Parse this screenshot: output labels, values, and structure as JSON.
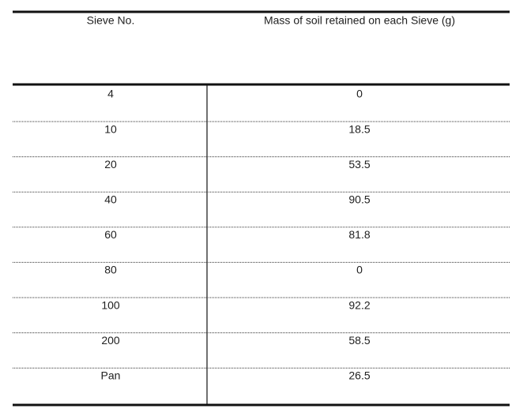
{
  "table": {
    "headers": [
      "Sieve No.",
      "Mass of soil retained on each Sieve (g)"
    ],
    "rows": [
      [
        "4",
        "0"
      ],
      [
        "10",
        "18.5"
      ],
      [
        "20",
        "53.5"
      ],
      [
        "40",
        "90.5"
      ],
      [
        "60",
        "81.8"
      ],
      [
        "80",
        "0"
      ],
      [
        "100",
        "92.2"
      ],
      [
        "200",
        "58.5"
      ],
      [
        "Pan",
        "26.5"
      ]
    ]
  }
}
